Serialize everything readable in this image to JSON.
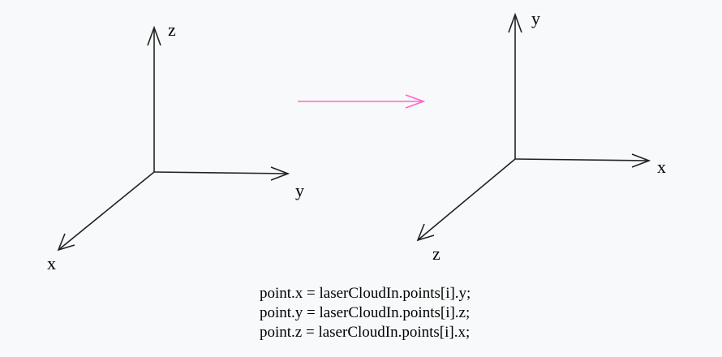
{
  "colors": {
    "background": "#f8f9fa",
    "axis": "#222222",
    "transform_arrow": "#ff66cc",
    "text": "#000000"
  },
  "left_frame": {
    "axis_labels": {
      "z": "z",
      "y": "y",
      "x": "x"
    }
  },
  "right_frame": {
    "axis_labels": {
      "y": "y",
      "x": "x",
      "z": "z"
    }
  },
  "code_lines": [
    "point.x = laserCloudIn.points[i].y;",
    "point.y = laserCloudIn.points[i].z;",
    "point.z = laserCloudIn.points[i].x;"
  ]
}
